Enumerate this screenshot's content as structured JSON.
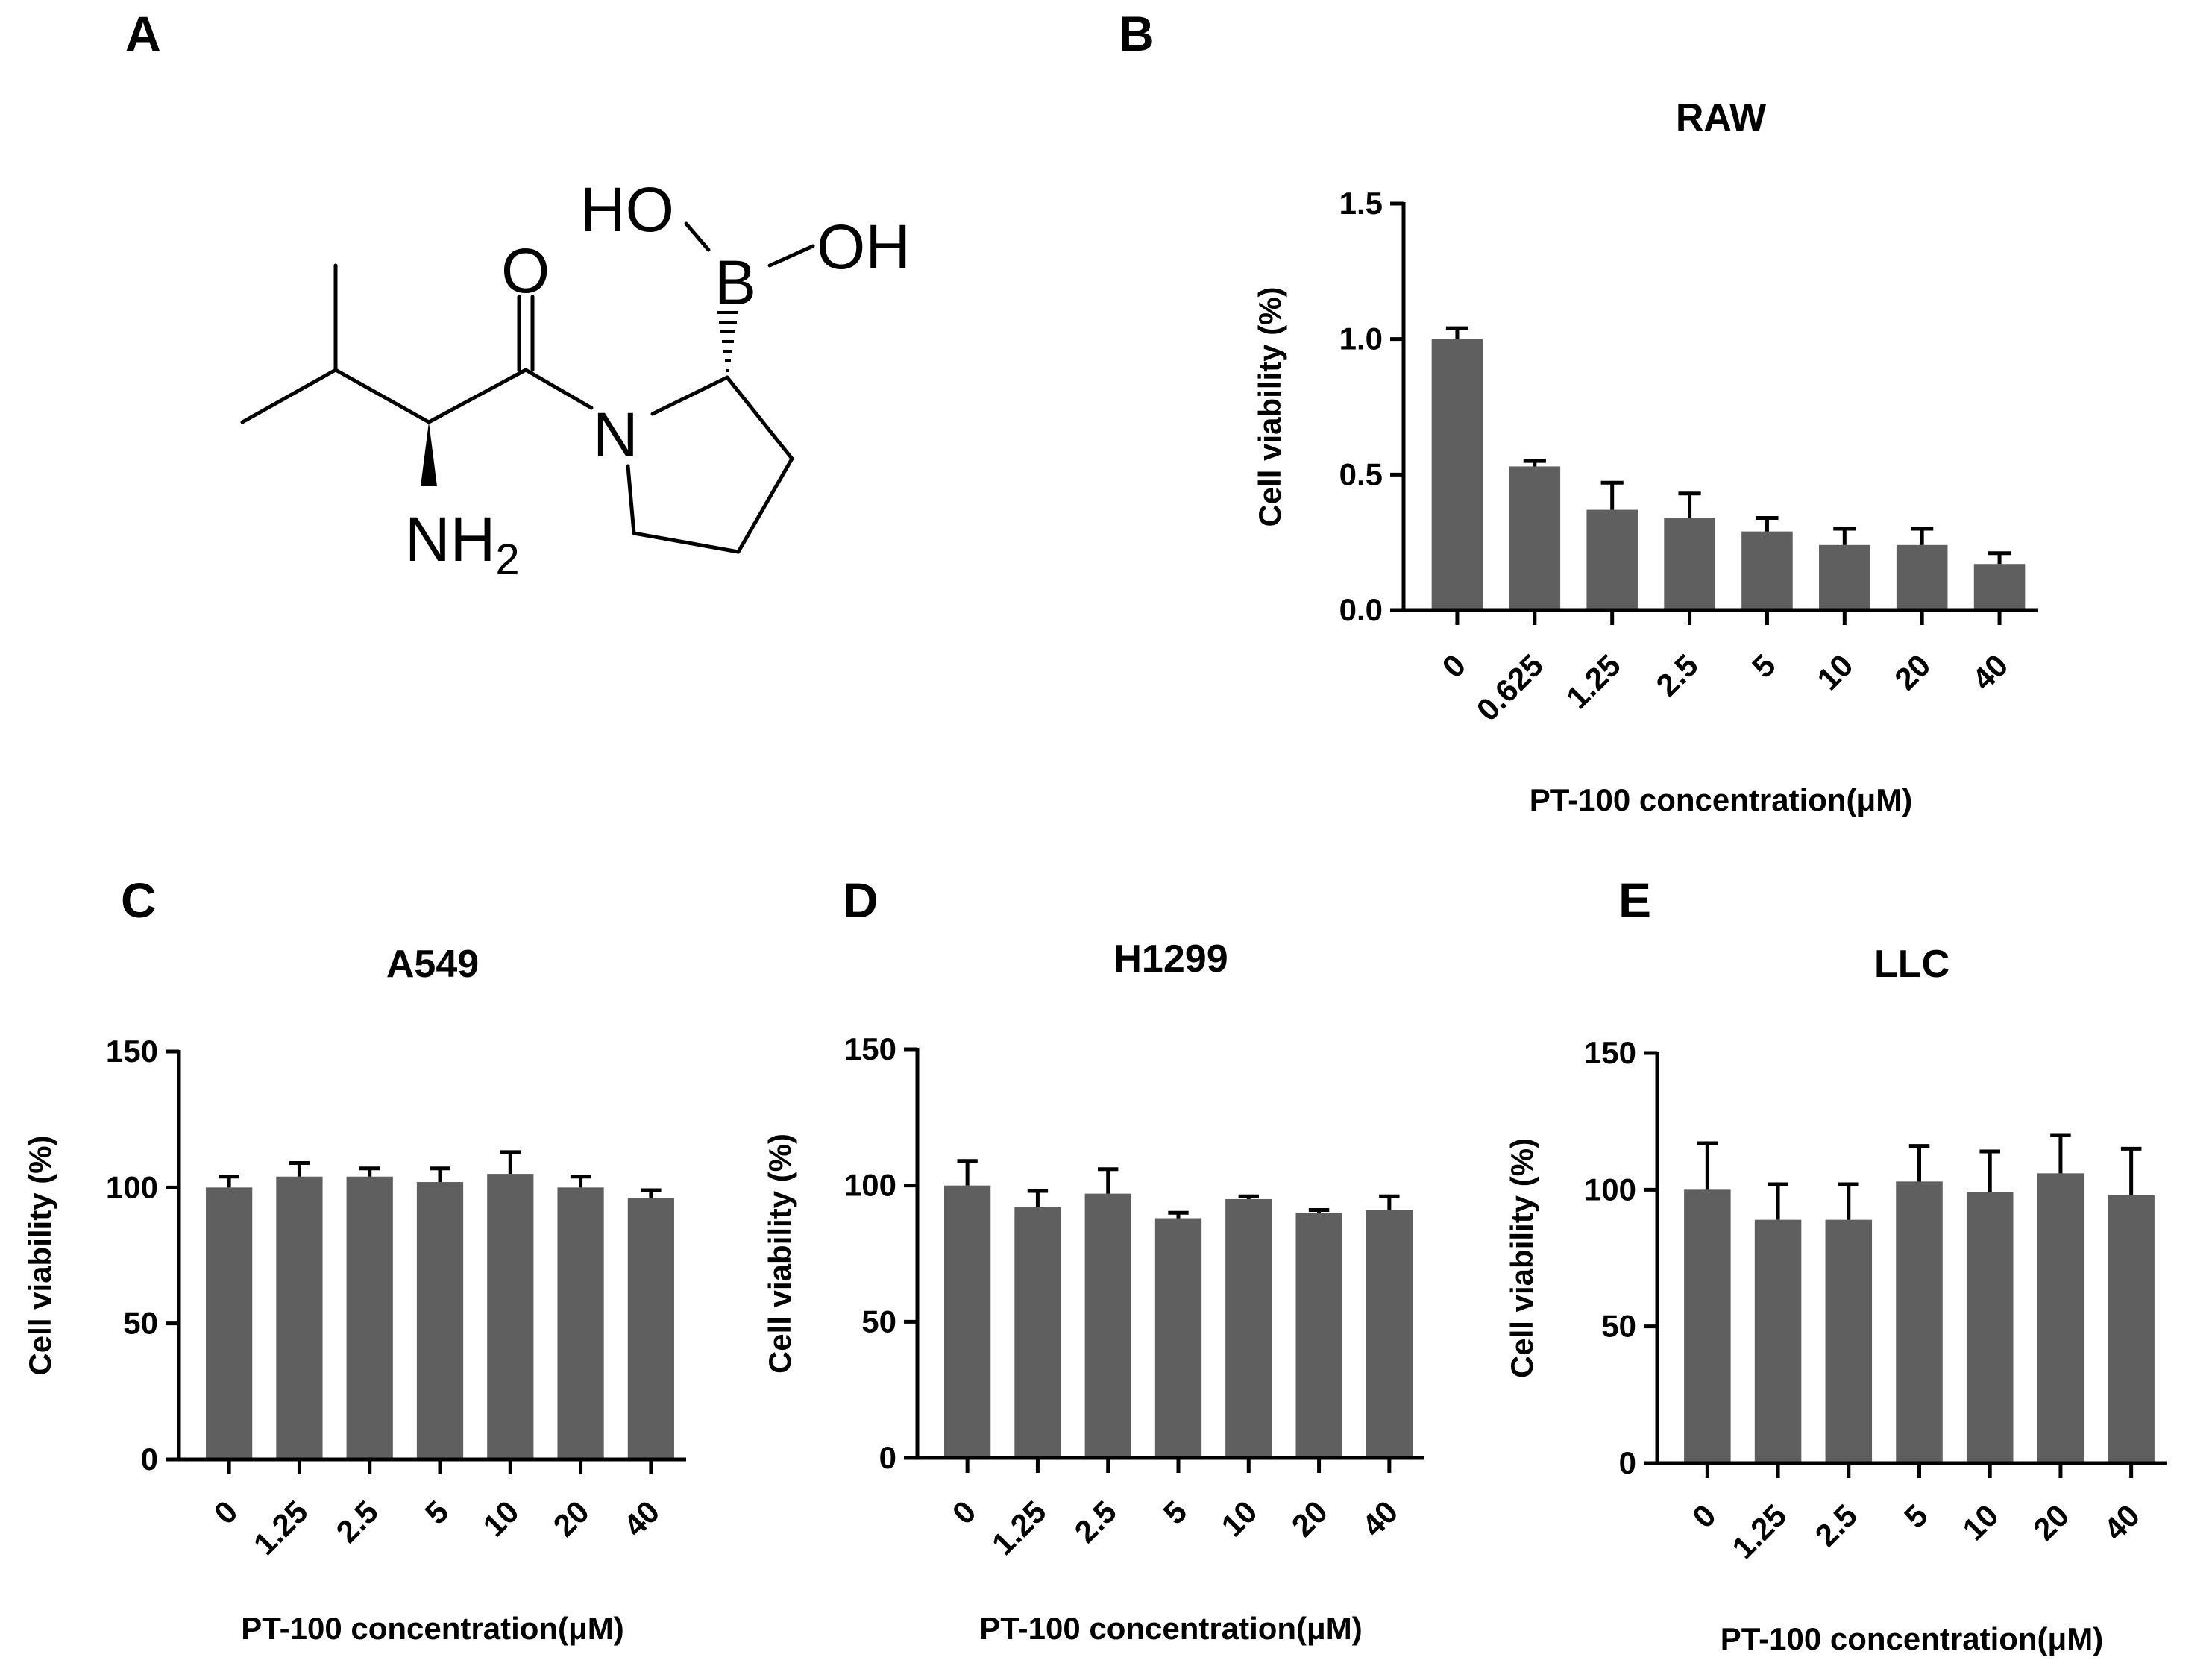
{
  "panel_labels": {
    "a": "A",
    "b": "B",
    "c": "C",
    "d": "D",
    "e": "E"
  },
  "structure": {
    "ho": "HO",
    "oh": "OH",
    "boron": "B",
    "oxygen": "O",
    "nitrogen": "N",
    "nh2_main": "NH",
    "nh2_sub": "2"
  },
  "colors": {
    "bar": "#5f5f5f",
    "axis": "#000000"
  },
  "chart_data": [
    {
      "panel": "B",
      "type": "bar",
      "title": "RAW",
      "xlabel": "PT-100 concentration(μM)",
      "ylabel": "Cell viability (%)",
      "categories": [
        "0",
        "0.625",
        "1.25",
        "2.5",
        "5",
        "10",
        "20",
        "40"
      ],
      "values": [
        1.0,
        0.53,
        0.37,
        0.34,
        0.29,
        0.24,
        0.24,
        0.17
      ],
      "errors": [
        0.04,
        0.02,
        0.1,
        0.09,
        0.05,
        0.06,
        0.06,
        0.04
      ],
      "ylim": [
        0,
        1.5
      ],
      "yticks": [
        "0.0",
        "0.5",
        "1.0",
        "1.5"
      ],
      "ytick_values": [
        0,
        0.5,
        1.0,
        1.5
      ]
    },
    {
      "panel": "C",
      "type": "bar",
      "title": "A549",
      "xlabel": "PT-100 concentration(μM)",
      "ylabel": "Cell viability (%)",
      "categories": [
        "0",
        "1.25",
        "2.5",
        "5",
        "10",
        "20",
        "40"
      ],
      "values": [
        100,
        104,
        104,
        102,
        105,
        100,
        96
      ],
      "errors": [
        4,
        5,
        3,
        5,
        8,
        4,
        3
      ],
      "ylim": [
        0,
        150
      ],
      "yticks": [
        "0",
        "50",
        "100",
        "150"
      ],
      "ytick_values": [
        0,
        50,
        100,
        150
      ]
    },
    {
      "panel": "D",
      "type": "bar",
      "title": "H1299",
      "xlabel": "PT-100 concentration(μM)",
      "ylabel": "Cell viability (%)",
      "categories": [
        "0",
        "1.25",
        "2.5",
        "5",
        "10",
        "20",
        "40"
      ],
      "values": [
        100,
        92,
        97,
        88,
        95,
        90,
        91
      ],
      "errors": [
        9,
        6,
        9,
        2,
        1,
        1,
        5
      ],
      "ylim": [
        0,
        150
      ],
      "yticks": [
        "0",
        "50",
        "100",
        "150"
      ],
      "ytick_values": [
        0,
        50,
        100,
        150
      ]
    },
    {
      "panel": "E",
      "type": "bar",
      "title": "LLC",
      "xlabel": "PT-100 concentration(μM)",
      "ylabel": "Cell viability (%)",
      "categories": [
        "0",
        "1.25",
        "2.5",
        "5",
        "10",
        "20",
        "40"
      ],
      "values": [
        100,
        89,
        89,
        103,
        99,
        106,
        98
      ],
      "errors": [
        17,
        13,
        13,
        13,
        15,
        14,
        17
      ],
      "ylim": [
        0,
        150
      ],
      "yticks": [
        "0",
        "50",
        "100",
        "150"
      ],
      "ytick_values": [
        0,
        50,
        100,
        150
      ]
    }
  ]
}
